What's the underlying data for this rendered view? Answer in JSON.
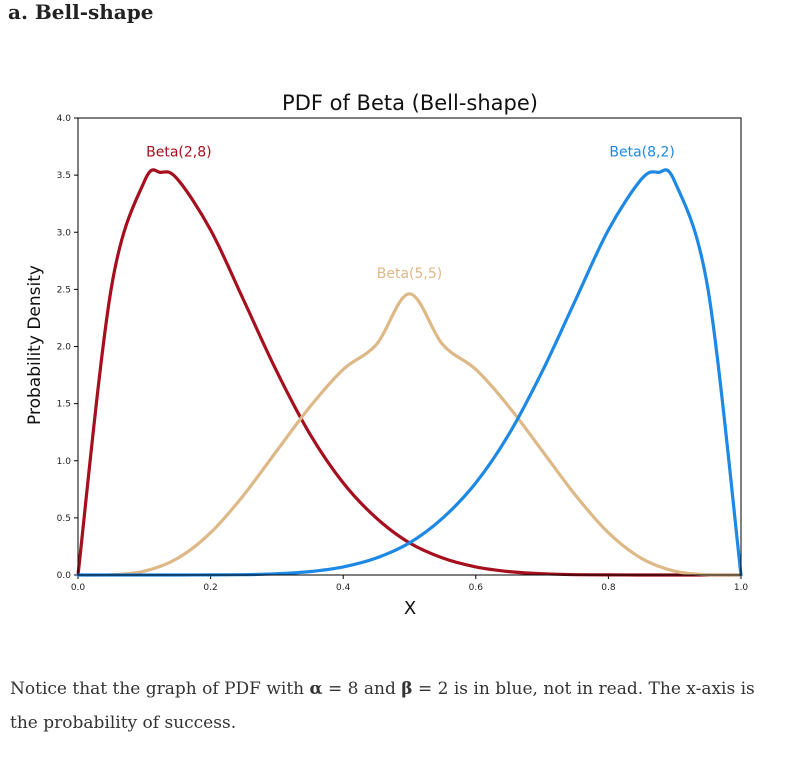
{
  "heading": "a. Bell-shape",
  "chart_data": {
    "type": "line",
    "title": "PDF of Beta (Bell-shape)",
    "xlabel": "X",
    "ylabel": "Probability Density",
    "xlim": [
      0.0,
      1.0
    ],
    "ylim": [
      0.0,
      4.0
    ],
    "xticks": [
      "0.0",
      "0.2",
      "0.4",
      "0.6",
      "0.8",
      "1.0"
    ],
    "yticks": [
      "0.0",
      "0.5",
      "1.0",
      "1.5",
      "2.0",
      "2.5",
      "3.0",
      "3.5",
      "4.0"
    ],
    "grid": false,
    "legend": "none",
    "series": [
      {
        "name": "Beta(2,8)",
        "color": "#a50f1e",
        "x": [
          0.0,
          0.05,
          0.1,
          0.125,
          0.15,
          0.2,
          0.25,
          0.3,
          0.35,
          0.4,
          0.45,
          0.5,
          0.55,
          0.6,
          0.65,
          0.7,
          0.75,
          0.8,
          0.85,
          0.9,
          0.95,
          1.0
        ],
        "y": [
          0.0,
          2.506,
          3.444,
          3.524,
          3.465,
          3.02,
          2.403,
          1.779,
          1.232,
          0.806,
          0.498,
          0.281,
          0.149,
          0.071,
          0.03,
          0.011,
          0.003,
          0.001,
          0.0,
          0.0,
          0.0,
          0.0
        ]
      },
      {
        "name": "Beta(5,5)",
        "color": "#deb887",
        "x": [
          0.0,
          0.05,
          0.1,
          0.15,
          0.2,
          0.25,
          0.3,
          0.35,
          0.4,
          0.45,
          0.5,
          0.55,
          0.6,
          0.65,
          0.7,
          0.75,
          0.8,
          0.85,
          0.9,
          0.95,
          1.0
        ],
        "y": [
          0.0,
          0.002,
          0.033,
          0.145,
          0.37,
          0.7,
          1.089,
          1.473,
          1.8,
          2.017,
          2.461,
          2.017,
          1.8,
          1.473,
          1.089,
          0.7,
          0.37,
          0.145,
          0.033,
          0.002,
          0.0
        ]
      },
      {
        "name": "Beta(8,2)",
        "color": "#1e88e5",
        "x": [
          0.0,
          0.05,
          0.1,
          0.15,
          0.2,
          0.25,
          0.3,
          0.35,
          0.4,
          0.45,
          0.5,
          0.55,
          0.6,
          0.65,
          0.7,
          0.75,
          0.8,
          0.85,
          0.875,
          0.9,
          0.95,
          1.0
        ],
        "y": [
          0.0,
          0.0,
          0.0,
          0.0,
          0.001,
          0.003,
          0.011,
          0.03,
          0.071,
          0.149,
          0.281,
          0.498,
          0.806,
          1.232,
          1.779,
          2.403,
          3.02,
          3.465,
          3.524,
          3.444,
          2.506,
          0.0
        ]
      }
    ]
  },
  "note": {
    "part1": "Notice that the graph of PDF with ",
    "alpha_symbol": "α",
    "part2": " = 8 and ",
    "beta_symbol": "β",
    "part3": " = 2 is in blue, not in read. The x-axis is the probability of success."
  }
}
